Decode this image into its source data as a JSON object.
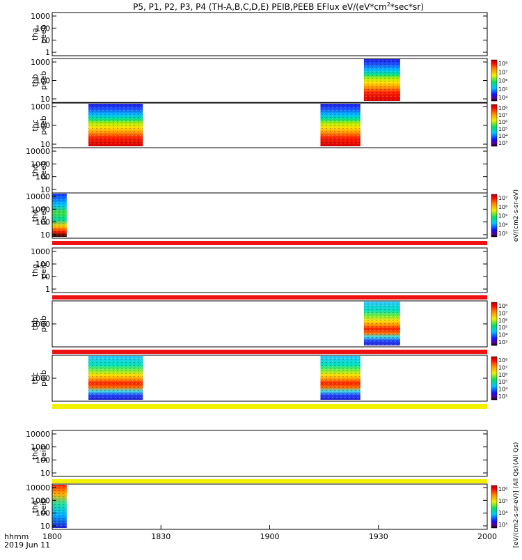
{
  "title": "P5, P1, P2, P3, P4 (TH-A,B,C,D,E) PEIB,PEEB EFlux eV/(eV*cm",
  "title_sup": "2",
  "title_tail": "*sec*sr)",
  "time_label": "hhmm",
  "date_label": "2019 Jun 11",
  "colors": {
    "frame": "#000000",
    "gap_red": "#ee1111",
    "gap_yellow": "#f2f200"
  },
  "chart_data": {
    "type": "heatmap",
    "x_range": [
      "18:00",
      "20:00"
    ],
    "x_ticks": [
      "1800",
      "1830",
      "1900",
      "1930",
      "2000"
    ],
    "panels": [
      {
        "name": "tha peeb",
        "ylabel": [
          "tha",
          "peeb"
        ],
        "yticks": [
          "1000",
          "100",
          "10",
          "1"
        ],
        "zlabel": "",
        "zticks": [],
        "bars": [],
        "gap_color": ""
      },
      {
        "name": "thb peeb",
        "ylabel": [
          "thb",
          "peeb"
        ],
        "yticks": [
          "1000",
          "100",
          "10"
        ],
        "zlabel": "",
        "zticks": [
          "10⁸",
          "10⁷",
          "10⁶",
          "10⁵",
          "10⁴"
        ],
        "bars": [
          {
            "start": "19:26",
            "end": "19:36",
            "style": "electron"
          }
        ],
        "gap_color": ""
      },
      {
        "name": "thc peeb",
        "ylabel": [
          "thc",
          "peeb"
        ],
        "yticks": [
          "1000",
          "100",
          "10"
        ],
        "zlabel": "",
        "zticks": [
          "10⁸",
          "10⁷",
          "10⁶",
          "10⁵",
          "10⁴",
          "10³"
        ],
        "bars": [
          {
            "start": "18:10",
            "end": "18:25",
            "style": "electron"
          },
          {
            "start": "19:14",
            "end": "19:25",
            "style": "electron"
          }
        ],
        "gap_color": ""
      },
      {
        "name": "thd peeb",
        "ylabel": [
          "thd",
          "peeb"
        ],
        "yticks": [
          "10000",
          "1000",
          "100",
          "10"
        ],
        "zlabel": "",
        "zticks": [],
        "bars": [],
        "gap_color": ""
      },
      {
        "name": "the peeb",
        "ylabel": [
          "the",
          "peeb"
        ],
        "yticks": [
          "10000",
          "1000",
          "100",
          "10"
        ],
        "zlabel": "eV/(cm2-s-sr-eV)",
        "zticks": [
          "10⁷",
          "10⁶",
          "10⁵",
          "10⁴",
          "10³"
        ],
        "bars": [
          {
            "start": "18:00",
            "end": "18:04",
            "style": "the_e"
          }
        ],
        "gap_color": "red"
      },
      {
        "name": "thg peib",
        "ylabel": [
          "thg",
          "peib"
        ],
        "yticks": [
          "1000",
          "100",
          "10",
          "1"
        ],
        "zlabel": "",
        "zticks": [],
        "bars": [],
        "gap_color": "red"
      },
      {
        "name": "thb peib",
        "ylabel": [
          "thb",
          "peib"
        ],
        "yticks": [
          "1000"
        ],
        "zlabel": "",
        "zticks": [
          "10⁸",
          "10⁷",
          "10⁶",
          "10⁵",
          "10⁴",
          "10³"
        ],
        "bars": [
          {
            "start": "19:26",
            "end": "19:36",
            "style": "ion"
          }
        ],
        "gap_color": "red"
      },
      {
        "name": "thc peib",
        "ylabel": [
          "thc",
          "peib"
        ],
        "yticks": [
          "1000"
        ],
        "zlabel": "",
        "zticks": [
          "10⁸",
          "10⁷",
          "10⁶",
          "10⁵",
          "10⁴",
          "10³"
        ],
        "bars": [
          {
            "start": "18:10",
            "end": "18:25",
            "style": "ion"
          },
          {
            "start": "19:14",
            "end": "19:25",
            "style": "ion"
          }
        ],
        "gap_color": "yellow"
      },
      {
        "name": "thd peib",
        "ylabel": [
          "thd",
          "peib"
        ],
        "yticks": [
          "10000",
          "1000",
          "100",
          "10"
        ],
        "zlabel": "(All Qs)",
        "zticks": [],
        "bars": [],
        "gap_color": "yellow"
      },
      {
        "name": "the peib",
        "ylabel": [
          "the",
          "peib"
        ],
        "yticks": [
          "10000",
          "1000",
          "100",
          "10"
        ],
        "zlabel": "[eV/(cm2-s-sr-eV)] (All Qs)",
        "zticks": [
          "10⁶",
          "10⁵",
          "10⁴",
          "10³"
        ],
        "bars": [
          {
            "start": "18:00",
            "end": "18:04",
            "style": "the_i"
          }
        ],
        "gap_color": ""
      }
    ]
  }
}
